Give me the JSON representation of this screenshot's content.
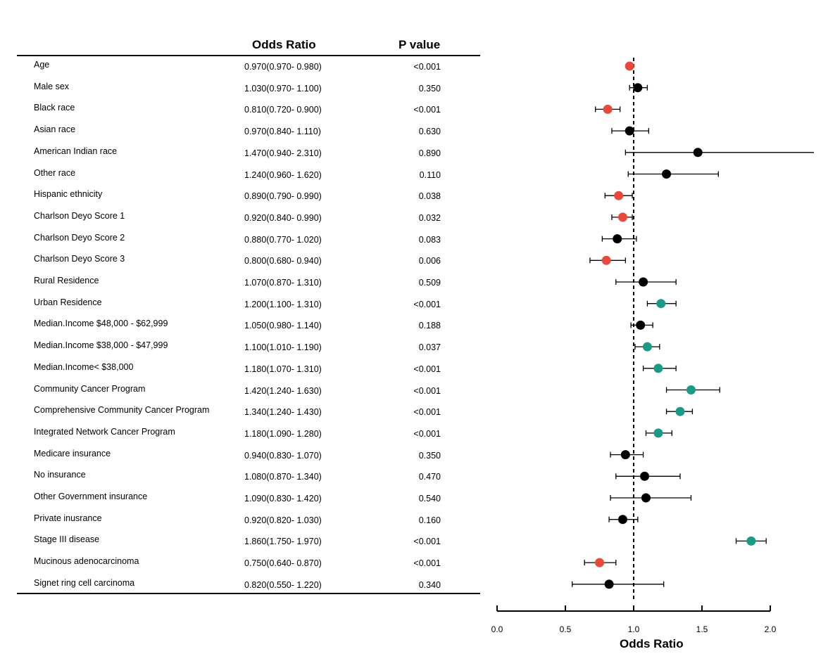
{
  "header": {
    "odds_ratio": "Odds Ratio",
    "p_value": "P value"
  },
  "colors": {
    "significant_lower": "#e8493a",
    "significant_higher": "#1a9a87",
    "not_significant": "#000000"
  },
  "chart_data": {
    "type": "forest",
    "xlabel": "Odds Ratio",
    "xlim": [
      0,
      2
    ],
    "xticks": [
      "0.0",
      "0.5",
      "1.0",
      "1.5",
      "2.0"
    ],
    "reference_line": 1.0,
    "rows": [
      {
        "label": "Age",
        "ci_text": "0.970(0.970- 0.980)",
        "p_text": "<0.001",
        "or": 0.97,
        "lo": 0.97,
        "hi": 0.98,
        "group": "significant_lower"
      },
      {
        "label": "Male sex",
        "ci_text": "1.030(0.970- 1.100)",
        "p_text": "0.350",
        "or": 1.03,
        "lo": 0.97,
        "hi": 1.1,
        "group": "not_significant"
      },
      {
        "label": "Black race",
        "ci_text": "0.810(0.720- 0.900)",
        "p_text": "<0.001",
        "or": 0.81,
        "lo": 0.72,
        "hi": 0.9,
        "group": "significant_lower"
      },
      {
        "label": "Asian race",
        "ci_text": "0.970(0.840- 1.110)",
        "p_text": "0.630",
        "or": 0.97,
        "lo": 0.84,
        "hi": 1.11,
        "group": "not_significant"
      },
      {
        "label": "American Indian race",
        "ci_text": "1.470(0.940- 2.310)",
        "p_text": "0.890",
        "or": 1.47,
        "lo": 0.94,
        "hi": 2.31,
        "group": "not_significant"
      },
      {
        "label": "Other race",
        "ci_text": "1.240(0.960- 1.620)",
        "p_text": "0.110",
        "or": 1.24,
        "lo": 0.96,
        "hi": 1.62,
        "group": "not_significant"
      },
      {
        "label": "Hispanic ethnicity",
        "ci_text": "0.890(0.790- 0.990)",
        "p_text": "0.038",
        "or": 0.89,
        "lo": 0.79,
        "hi": 0.99,
        "group": "significant_lower"
      },
      {
        "label": "Charlson Deyo Score 1",
        "ci_text": "0.920(0.840- 0.990)",
        "p_text": "0.032",
        "or": 0.92,
        "lo": 0.84,
        "hi": 0.99,
        "group": "significant_lower"
      },
      {
        "label": "Charlson Deyo Score 2",
        "ci_text": "0.880(0.770- 1.020)",
        "p_text": "0.083",
        "or": 0.88,
        "lo": 0.77,
        "hi": 1.02,
        "group": "not_significant"
      },
      {
        "label": "Charlson Deyo Score 3",
        "ci_text": "0.800(0.680- 0.940)",
        "p_text": "0.006",
        "or": 0.8,
        "lo": 0.68,
        "hi": 0.94,
        "group": "significant_lower"
      },
      {
        "label": "Rural Residence",
        "ci_text": "1.070(0.870- 1.310)",
        "p_text": "0.509",
        "or": 1.07,
        "lo": 0.87,
        "hi": 1.31,
        "group": "not_significant"
      },
      {
        "label": "Urban Residence",
        "ci_text": "1.200(1.100- 1.310)",
        "p_text": "<0.001",
        "or": 1.2,
        "lo": 1.1,
        "hi": 1.31,
        "group": "significant_higher"
      },
      {
        "label": "Median.Income $48,000 -  $62,999",
        "ci_text": "1.050(0.980- 1.140)",
        "p_text": "0.188",
        "or": 1.05,
        "lo": 0.98,
        "hi": 1.14,
        "group": "not_significant"
      },
      {
        "label": "Median.Income $38,000 -  $47,999",
        "ci_text": "1.100(1.010- 1.190)",
        "p_text": "0.037",
        "or": 1.1,
        "lo": 1.01,
        "hi": 1.19,
        "group": "significant_higher"
      },
      {
        "label": "Median.Income< $38,000",
        "ci_text": "1.180(1.070- 1.310)",
        "p_text": "<0.001",
        "or": 1.18,
        "lo": 1.07,
        "hi": 1.31,
        "group": "significant_higher"
      },
      {
        "label": "Community Cancer Program",
        "ci_text": "1.420(1.240- 1.630)",
        "p_text": "<0.001",
        "or": 1.42,
        "lo": 1.24,
        "hi": 1.63,
        "group": "significant_higher"
      },
      {
        "label": "Comprehensive Community Cancer  Program",
        "ci_text": "1.340(1.240- 1.430)",
        "p_text": "<0.001",
        "or": 1.34,
        "lo": 1.24,
        "hi": 1.43,
        "group": "significant_higher"
      },
      {
        "label": "Integrated Network Cancer Program",
        "ci_text": "1.180(1.090- 1.280)",
        "p_text": "<0.001",
        "or": 1.18,
        "lo": 1.09,
        "hi": 1.28,
        "group": "significant_higher"
      },
      {
        "label": "Medicare insurance",
        "ci_text": "0.940(0.830- 1.070)",
        "p_text": "0.350",
        "or": 0.94,
        "lo": 0.83,
        "hi": 1.07,
        "group": "not_significant"
      },
      {
        "label": "No insurance",
        "ci_text": "1.080(0.870- 1.340)",
        "p_text": "0.470",
        "or": 1.08,
        "lo": 0.87,
        "hi": 1.34,
        "group": "not_significant"
      },
      {
        "label": "Other Government insurance",
        "ci_text": "1.090(0.830- 1.420)",
        "p_text": "0.540",
        "or": 1.09,
        "lo": 0.83,
        "hi": 1.42,
        "group": "not_significant"
      },
      {
        "label": "Private inusrance",
        "ci_text": "0.920(0.820- 1.030)",
        "p_text": "0.160",
        "or": 0.92,
        "lo": 0.82,
        "hi": 1.03,
        "group": "not_significant"
      },
      {
        "label": "Stage III disease",
        "ci_text": "1.860(1.750- 1.970)",
        "p_text": "<0.001",
        "or": 1.86,
        "lo": 1.75,
        "hi": 1.97,
        "group": "significant_higher"
      },
      {
        "label": "Mucinous adenocarcinoma",
        "ci_text": "0.750(0.640- 0.870)",
        "p_text": "<0.001",
        "or": 0.75,
        "lo": 0.64,
        "hi": 0.87,
        "group": "significant_lower"
      },
      {
        "label": "Signet ring cell carcinoma",
        "ci_text": "0.820(0.550- 1.220)",
        "p_text": "0.340",
        "or": 0.82,
        "lo": 0.55,
        "hi": 1.22,
        "group": "not_significant"
      }
    ]
  }
}
